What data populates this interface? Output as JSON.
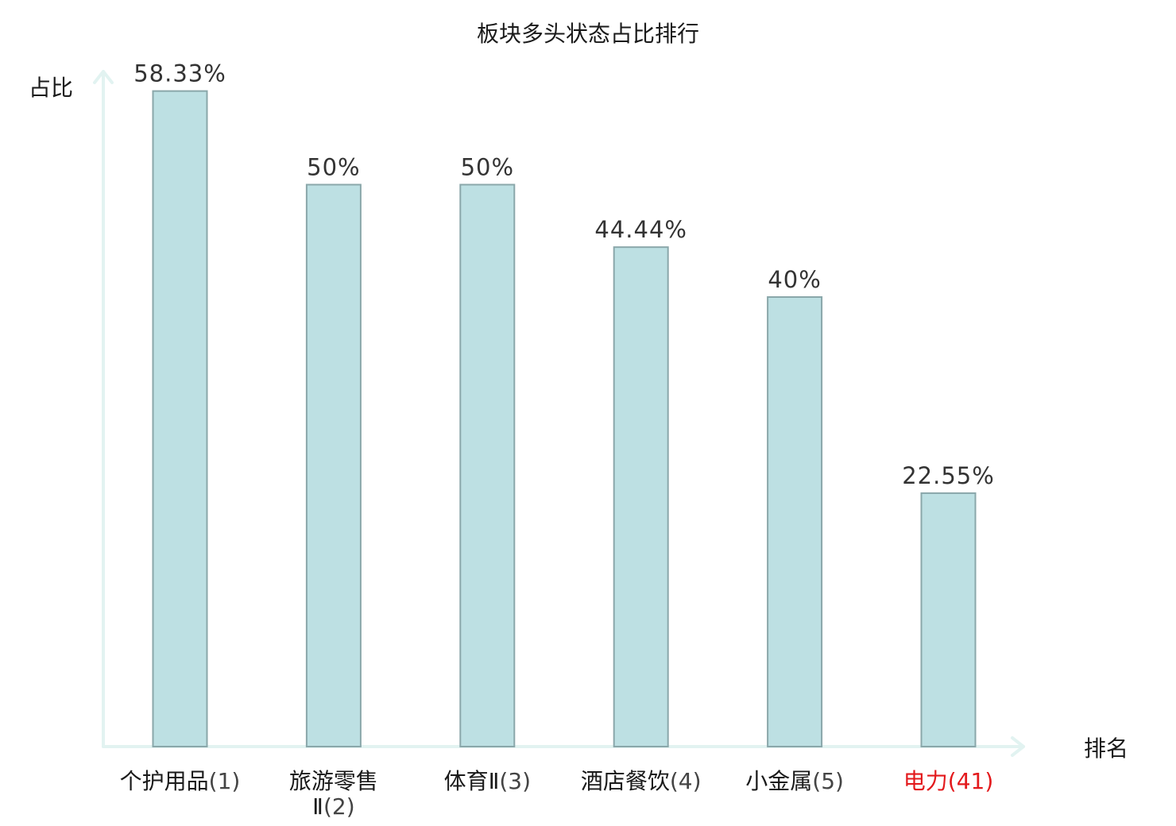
{
  "chart_data": {
    "type": "bar",
    "title": "板块多头状态占比排行",
    "ylabel": "占比",
    "xlabel": "排名",
    "ylim": [
      0,
      60
    ],
    "grid": false,
    "legend": "none",
    "categories": [
      {
        "name": "个护用品",
        "rank": "(1)",
        "highlight": false
      },
      {
        "name": "旅游零售Ⅱ",
        "rank": "(2)",
        "highlight": false
      },
      {
        "name": "体育Ⅱ",
        "rank": "(3)",
        "highlight": false
      },
      {
        "name": "酒店餐饮",
        "rank": "(4)",
        "highlight": false
      },
      {
        "name": "小金属",
        "rank": "(5)",
        "highlight": false
      },
      {
        "name": "电力",
        "rank": "(41)",
        "highlight": true
      }
    ],
    "values": [
      58.33,
      50,
      50,
      44.44,
      40,
      22.55
    ],
    "value_labels": [
      "58.33%",
      "50%",
      "50%",
      "44.44%",
      "40%",
      "22.55%"
    ],
    "colors": {
      "bar_fill": "#bde0e3",
      "bar_stroke": "#8aa7aa",
      "axis": "#e2f3f1",
      "highlight": "#e3191c"
    }
  }
}
